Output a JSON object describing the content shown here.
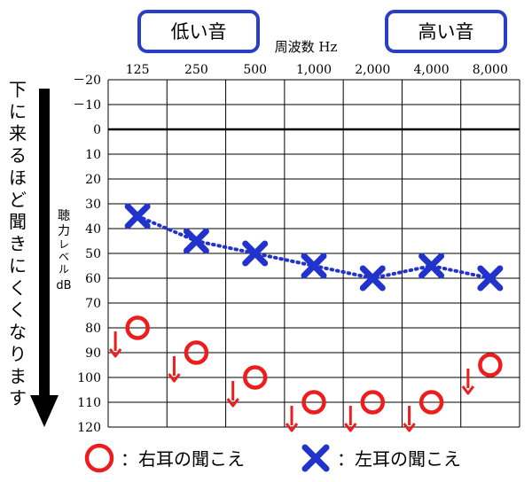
{
  "labels": {
    "low_tone": "低い音",
    "high_tone": "高い音",
    "x_axis_title": "周波数 Hz",
    "y_axis_title_line1": "聴",
    "y_axis_title_line2": "力",
    "y_axis_title_line3": "レ",
    "y_axis_title_line4": "ベ",
    "y_axis_title_line5": "ル",
    "y_axis_unit": "dB",
    "side_note": "下に来るほど聞きにくくなります",
    "legend_right": "：右耳の聞こえ",
    "legend_left": "：左耳の聞こえ"
  },
  "colors": {
    "right_ear": "#ee1c1c",
    "left_ear": "#2233cc",
    "tag_border": "#2a3fc7",
    "grid": "#000000"
  },
  "chart_data": {
    "type": "scatter",
    "x_categories": [
      "125",
      "250",
      "500",
      "1,000",
      "2,000",
      "4,000",
      "8,000"
    ],
    "y_ticks": [
      "－20",
      "－10",
      "0",
      "10",
      "20",
      "30",
      "40",
      "50",
      "60",
      "70",
      "80",
      "90",
      "100",
      "110",
      "120"
    ],
    "ylim": [
      -20,
      120
    ],
    "y_inverted": true,
    "series": [
      {
        "name": "右耳の聞こえ",
        "marker": "circle",
        "values": [
          80,
          90,
          100,
          110,
          110,
          110,
          95
        ],
        "scale_out_arrows": true
      },
      {
        "name": "左耳の聞こえ",
        "marker": "x",
        "values": [
          35,
          45,
          50,
          55,
          60,
          55,
          60
        ],
        "connected": "dotted"
      }
    ]
  }
}
